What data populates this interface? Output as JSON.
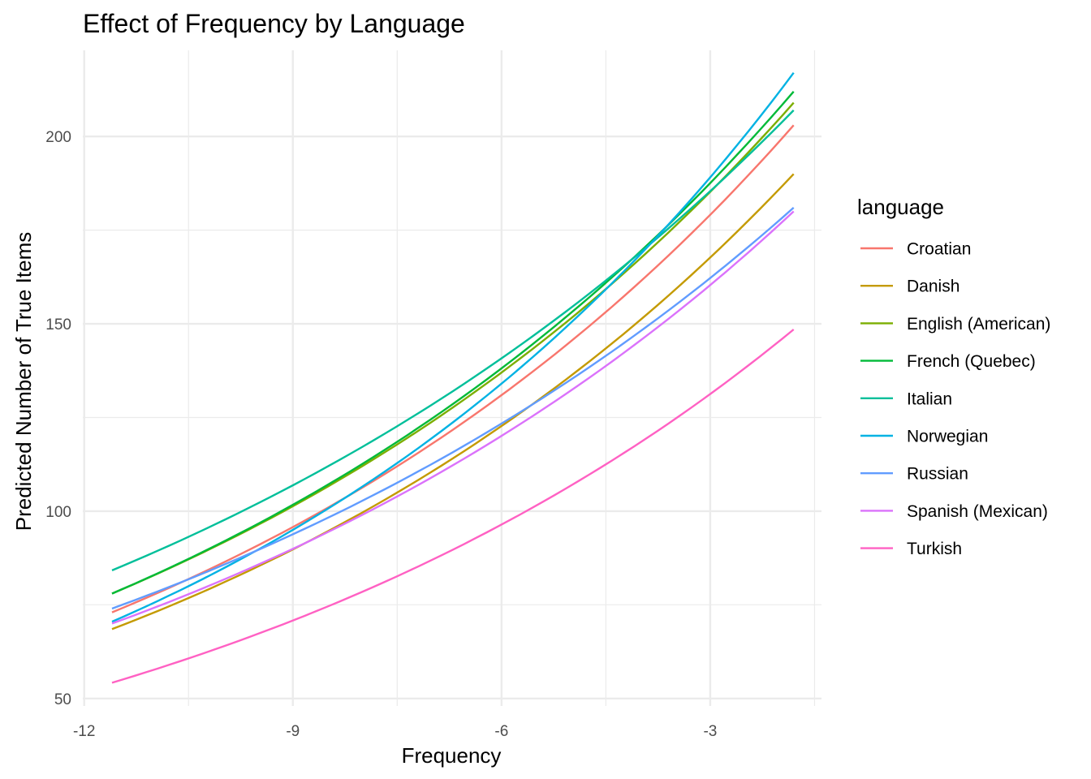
{
  "chart_data": {
    "type": "line",
    "title": "Effect of Frequency by Language",
    "xlabel": "Frequency",
    "ylabel": "Predicted Number of True Items",
    "xlim": [
      -12.02,
      -1.4
    ],
    "ylim": [
      48,
      223
    ],
    "x_ticks": [
      -12,
      -9,
      -6,
      -3
    ],
    "x_minor_ticks": [
      -10.5,
      -7.5,
      -4.5,
      -1.5
    ],
    "y_ticks": [
      50,
      100,
      150,
      200
    ],
    "y_minor_ticks": [
      75,
      125,
      175
    ],
    "x_tick_labels": [
      "-12",
      "-9",
      "-6",
      "-3"
    ],
    "y_tick_labels": [
      "50",
      "100",
      "150",
      "200"
    ],
    "grid": true,
    "legend": {
      "title": "language",
      "position": "right"
    },
    "x": [
      -11.6,
      -1.8
    ],
    "series": [
      {
        "name": "Croatian",
        "color": "#F8766D",
        "start": 73,
        "end": 203
      },
      {
        "name": "Danish",
        "color": "#C49A00",
        "start": 68.5,
        "end": 190
      },
      {
        "name": "English (American)",
        "color": "#7CAE00",
        "start": 78,
        "end": 209
      },
      {
        "name": "French (Quebec)",
        "color": "#00BA38",
        "start": 78,
        "end": 212
      },
      {
        "name": "Italian",
        "color": "#00BF9A",
        "start": 84.2,
        "end": 207
      },
      {
        "name": "Norwegian",
        "color": "#00B2E3",
        "start": 70.5,
        "end": 217
      },
      {
        "name": "Russian",
        "color": "#619CFF",
        "start": 74,
        "end": 181
      },
      {
        "name": "Spanish (Mexican)",
        "color": "#DB72FB",
        "start": 70,
        "end": 180
      },
      {
        "name": "Turkish",
        "color": "#FF61C3",
        "start": 54.2,
        "end": 148.5
      }
    ]
  }
}
